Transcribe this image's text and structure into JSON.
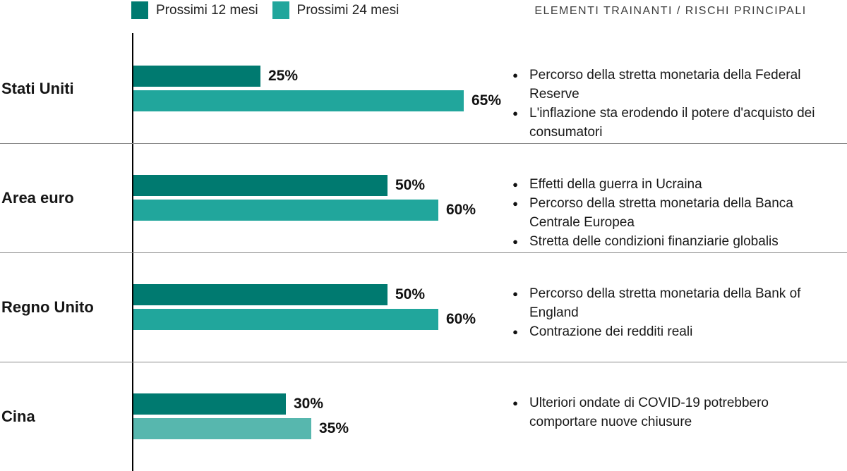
{
  "chart_data": {
    "type": "bar",
    "orientation": "horizontal",
    "value_suffix": "%",
    "xlim": [
      0,
      100
    ],
    "grid": false,
    "legend_position": "top",
    "categories": [
      "Stati Uniti",
      "Area euro",
      "Regno Unito",
      "Cina"
    ],
    "series": [
      {
        "name": "Prossimi 12 mesi",
        "color": "#007A70",
        "values": [
          25,
          50,
          50,
          30
        ]
      },
      {
        "name": "Prossimi 24 mesi",
        "color": "#21A69C",
        "values": [
          65,
          60,
          60,
          35
        ],
        "value_colors": [
          "#21A69C",
          "#21A69C",
          "#21A69C",
          "#57B7AE"
        ]
      }
    ],
    "annotations_header": "ELEMENTI TRAINANTI / RISCHI PRINCIPALI",
    "annotations": [
      [
        "Percorso della stretta monetaria della Federal Reserve",
        "L'inflazione sta erodendo il potere d'acquisto dei consumatori"
      ],
      [
        "Effetti della guerra in Ucraina",
        "Percorso della stretta monetaria della Banca Centrale Europea",
        "Stretta delle condizioni finanziarie globalis"
      ],
      [
        "Percorso della stretta monetaria della Bank of England",
        "Contrazione dei redditi reali"
      ],
      [
        "Ulteriori ondate di COVID-19 potrebbero comportare nuove chiusure"
      ]
    ]
  }
}
